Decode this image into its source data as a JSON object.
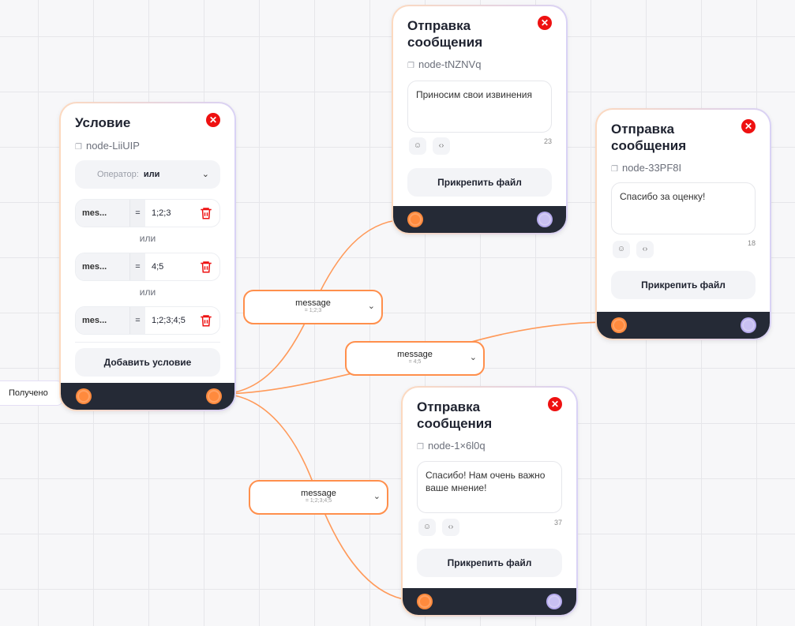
{
  "colors": {
    "accent": "#ff8a3d",
    "close": "#ee1111",
    "bar": "#252a36",
    "handle_out": "#c8c0f2"
  },
  "source_label": "Получено",
  "condition": {
    "title": "Условие",
    "node_id": "node-LiiUIP",
    "operator_label": "Оператор:",
    "operator_value": "или",
    "rows": [
      {
        "field": "mes...",
        "op": "=",
        "value": "1;2;3"
      },
      {
        "field": "mes...",
        "op": "=",
        "value": "4;5"
      },
      {
        "field": "mes...",
        "op": "=",
        "value": "1;2;3;4;5"
      }
    ],
    "joiner": "или",
    "add_label": "Добавить условие"
  },
  "edges": [
    {
      "name": "message",
      "cond": "= 1;2;3"
    },
    {
      "name": "message",
      "cond": "= 4;5"
    },
    {
      "name": "message",
      "cond": "= 1;2;3;4;5"
    }
  ],
  "messages": [
    {
      "title": "Отправка сообщения",
      "node_id": "node-tNZNVq",
      "text": "Приносим свои извинения",
      "count": "23",
      "attach": "Прикрепить файл"
    },
    {
      "title": "Отправка сообщения",
      "node_id": "node-33PF8I",
      "text": "Спасибо за оценку!",
      "count": "18",
      "attach": "Прикрепить файл"
    },
    {
      "title": "Отправка сообщения",
      "node_id": "node-1×6l0q",
      "text": "Спасибо! Нам очень важно ваше мнение!",
      "count": "37",
      "attach": "Прикрепить файл"
    }
  ]
}
